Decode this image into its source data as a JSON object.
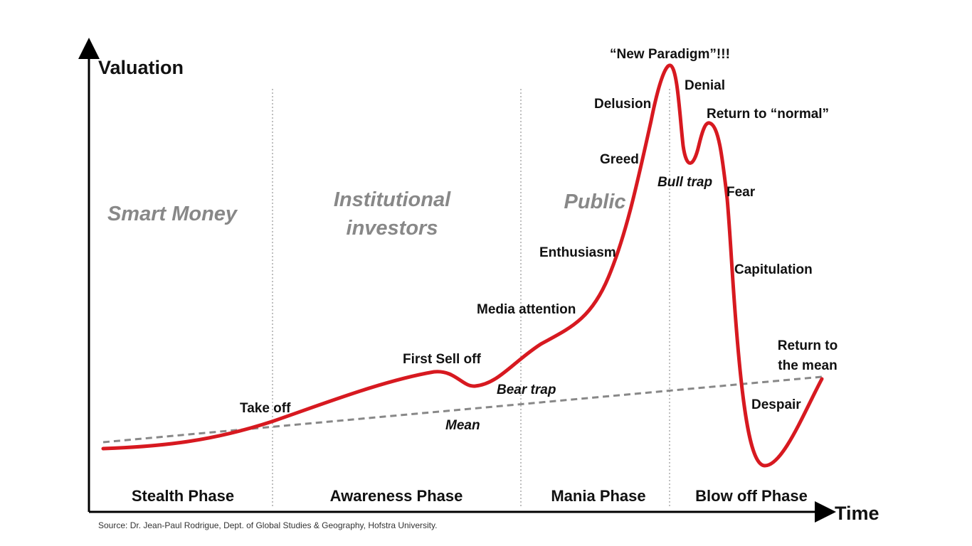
{
  "axes": {
    "y_label": "Valuation",
    "x_label": "Time"
  },
  "groups": [
    [
      "Smart Money"
    ],
    [
      "Institutional",
      "investors"
    ],
    [
      "Public"
    ]
  ],
  "phases": [
    "Stealth Phase",
    "Awareness Phase",
    "Mania Phase",
    "Blow off Phase"
  ],
  "annotations": [
    "Take off",
    "First Sell off",
    "Bear trap",
    "Media attention",
    "Enthusiasm",
    "Greed",
    "Delusion",
    "“New Paradigm”!!!",
    "Denial",
    "Bull trap",
    "Return to “normal”",
    "Fear",
    "Capitulation",
    "Despair",
    [
      "Return to",
      "the mean"
    ]
  ],
  "mean_label": "Mean",
  "source": "Source: Dr. Jean-Paul Rodrigue, Dept. of Global Studies & Geography, Hofstra University."
}
